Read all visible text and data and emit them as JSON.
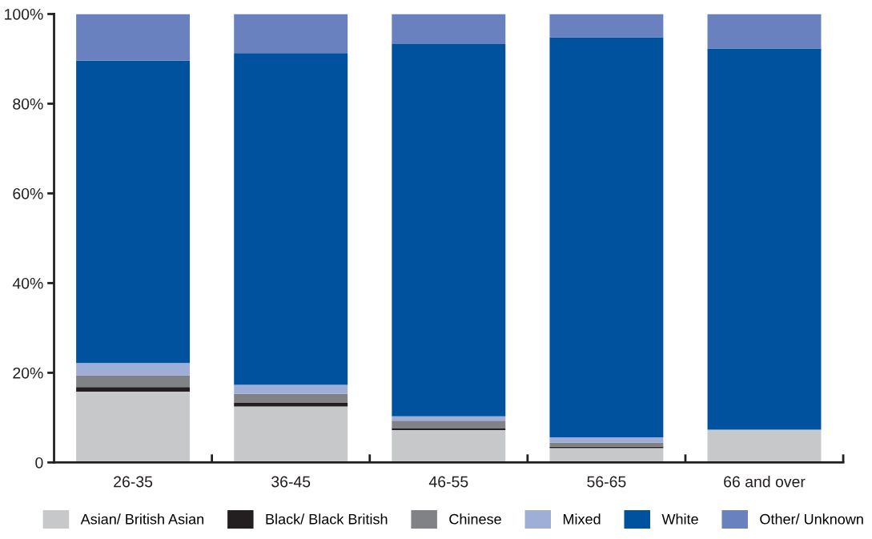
{
  "chart_data": {
    "type": "bar",
    "stacked": true,
    "categories": [
      "26-35",
      "36-45",
      "46-55",
      "56-65",
      "66 and over"
    ],
    "series": [
      {
        "name": "Asian/ British Asian",
        "color": "#c7c8ca",
        "values": [
          15.8,
          12.5,
          7.2,
          3.2,
          7.3
        ]
      },
      {
        "name": "Black/ Black British",
        "color": "#231f20",
        "values": [
          1.0,
          0.9,
          0.4,
          0.3,
          0
        ]
      },
      {
        "name": "Chinese",
        "color": "#818285",
        "values": [
          2.6,
          1.9,
          1.7,
          0.9,
          0
        ]
      },
      {
        "name": "Mixed",
        "color": "#9eaed6",
        "values": [
          2.8,
          2.0,
          1.0,
          1.2,
          0
        ]
      },
      {
        "name": "White",
        "color": "#00529e",
        "values": [
          67.4,
          74.0,
          83.0,
          89.2,
          85.0
        ]
      },
      {
        "name": "Other/ Unknown",
        "color": "#6981bf",
        "values": [
          10.4,
          8.7,
          6.7,
          5.2,
          7.7
        ]
      }
    ],
    "ylim": [
      0,
      100
    ],
    "yticks": [
      {
        "value": 0,
        "label": "0"
      },
      {
        "value": 20,
        "label": "20%"
      },
      {
        "value": 40,
        "label": "40%"
      },
      {
        "value": 60,
        "label": "60%"
      },
      {
        "value": 80,
        "label": "80%"
      },
      {
        "value": 100,
        "label": "100%"
      }
    ],
    "grid": false,
    "legend": "bottom"
  }
}
